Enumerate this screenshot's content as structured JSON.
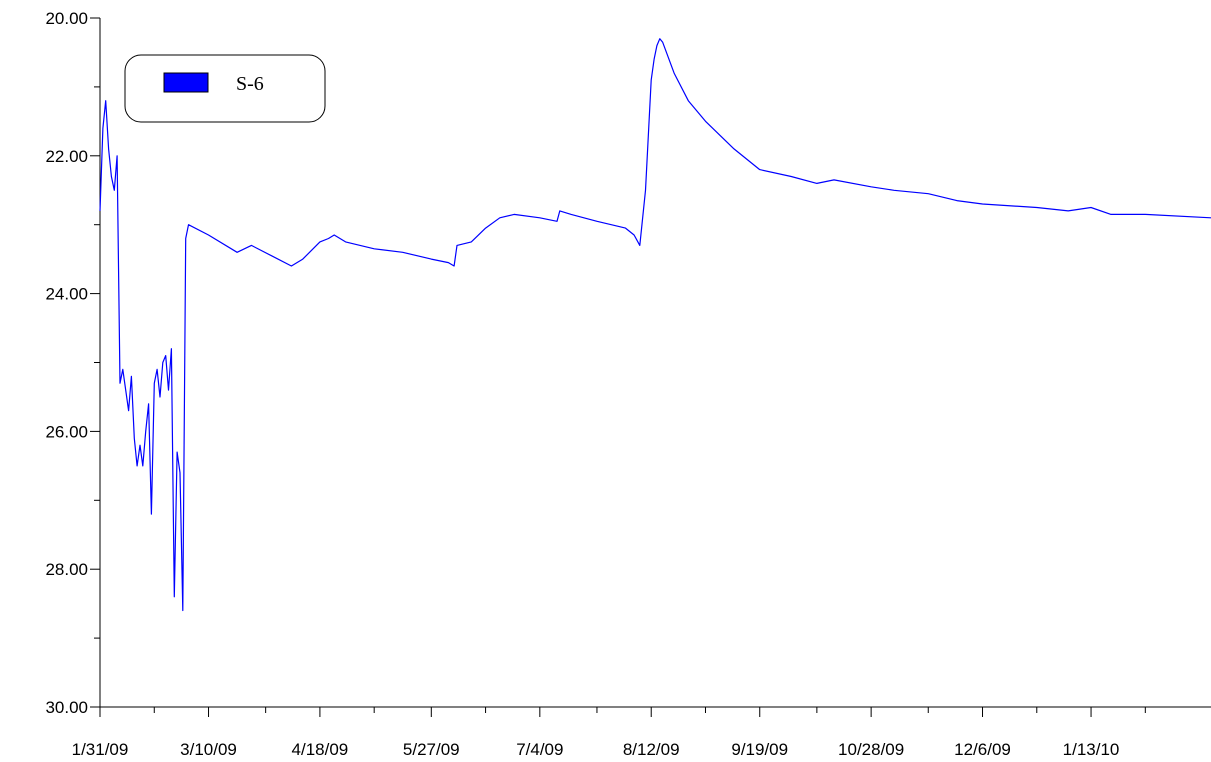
{
  "chart_data": {
    "type": "line",
    "title": "",
    "xlabel": "",
    "ylabel": "",
    "y_inverted": true,
    "ylim": [
      20.0,
      30.0
    ],
    "xlim": [
      "2009-01-31",
      "2010-02-24"
    ],
    "y_ticks": [
      {
        "value": 20.0,
        "label": "20.00"
      },
      {
        "value": 22.0,
        "label": "22.00"
      },
      {
        "value": 24.0,
        "label": "24.00"
      },
      {
        "value": 26.0,
        "label": "26.00"
      },
      {
        "value": 28.0,
        "label": "28.00"
      },
      {
        "value": 30.0,
        "label": "30.00"
      }
    ],
    "y_minor_ticks": [
      21.0,
      23.0,
      25.0,
      27.0,
      29.0
    ],
    "x_ticks": [
      {
        "value": "2009-01-31",
        "label": "1/31/09"
      },
      {
        "value": "2009-03-10",
        "label": "3/10/09"
      },
      {
        "value": "2009-04-18",
        "label": "4/18/09"
      },
      {
        "value": "2009-05-27",
        "label": "5/27/09"
      },
      {
        "value": "2009-07-04",
        "label": "7/4/09"
      },
      {
        "value": "2009-08-12",
        "label": "8/12/09"
      },
      {
        "value": "2009-09-19",
        "label": "9/19/09"
      },
      {
        "value": "2009-10-28",
        "label": "10/28/09"
      },
      {
        "value": "2009-12-06",
        "label": "12/6/09"
      },
      {
        "value": "2010-01-13",
        "label": "1/13/10"
      }
    ],
    "x_minor_ticks": [
      "2009-02-19",
      "2009-03-30",
      "2009-05-07",
      "2009-06-15",
      "2009-07-24",
      "2009-08-31",
      "2009-10-09",
      "2009-11-17",
      "2009-12-25",
      "2010-02-01"
    ],
    "grid": false,
    "legend": {
      "position": "top-left",
      "box": "rounded"
    },
    "series": [
      {
        "name": "S-6",
        "color": "#0000ff",
        "points": [
          [
            "2009-01-31",
            22.8
          ],
          [
            "2009-02-01",
            21.6
          ],
          [
            "2009-02-02",
            21.2
          ],
          [
            "2009-02-03",
            21.9
          ],
          [
            "2009-02-04",
            22.3
          ],
          [
            "2009-02-05",
            22.5
          ],
          [
            "2009-02-06",
            22.0
          ],
          [
            "2009-02-07",
            25.3
          ],
          [
            "2009-02-08",
            25.1
          ],
          [
            "2009-02-09",
            25.4
          ],
          [
            "2009-02-10",
            25.7
          ],
          [
            "2009-02-11",
            25.2
          ],
          [
            "2009-02-12",
            26.1
          ],
          [
            "2009-02-13",
            26.5
          ],
          [
            "2009-02-14",
            26.2
          ],
          [
            "2009-02-15",
            26.5
          ],
          [
            "2009-02-16",
            26.0
          ],
          [
            "2009-02-17",
            25.6
          ],
          [
            "2009-02-18",
            27.2
          ],
          [
            "2009-02-19",
            25.3
          ],
          [
            "2009-02-20",
            25.1
          ],
          [
            "2009-02-21",
            25.5
          ],
          [
            "2009-02-22",
            25.0
          ],
          [
            "2009-02-23",
            24.9
          ],
          [
            "2009-02-24",
            25.4
          ],
          [
            "2009-02-25",
            24.8
          ],
          [
            "2009-02-26",
            28.4
          ],
          [
            "2009-02-27",
            26.3
          ],
          [
            "2009-02-28",
            26.6
          ],
          [
            "2009-03-01",
            28.6
          ],
          [
            "2009-03-02",
            23.2
          ],
          [
            "2009-03-03",
            23.0
          ],
          [
            "2009-03-10",
            23.15
          ],
          [
            "2009-03-20",
            23.4
          ],
          [
            "2009-03-25",
            23.3
          ],
          [
            "2009-04-01",
            23.45
          ],
          [
            "2009-04-08",
            23.6
          ],
          [
            "2009-04-12",
            23.5
          ],
          [
            "2009-04-18",
            23.25
          ],
          [
            "2009-04-21",
            23.2
          ],
          [
            "2009-04-23",
            23.15
          ],
          [
            "2009-04-27",
            23.25
          ],
          [
            "2009-05-07",
            23.35
          ],
          [
            "2009-05-17",
            23.4
          ],
          [
            "2009-05-27",
            23.5
          ],
          [
            "2009-06-02",
            23.55
          ],
          [
            "2009-06-04",
            23.6
          ],
          [
            "2009-06-05",
            23.3
          ],
          [
            "2009-06-10",
            23.25
          ],
          [
            "2009-06-15",
            23.05
          ],
          [
            "2009-06-20",
            22.9
          ],
          [
            "2009-06-25",
            22.85
          ],
          [
            "2009-07-04",
            22.9
          ],
          [
            "2009-07-10",
            22.95
          ],
          [
            "2009-07-11",
            22.8
          ],
          [
            "2009-07-15",
            22.85
          ],
          [
            "2009-07-24",
            22.95
          ],
          [
            "2009-08-03",
            23.05
          ],
          [
            "2009-08-06",
            23.15
          ],
          [
            "2009-08-08",
            23.3
          ],
          [
            "2009-08-10",
            22.5
          ],
          [
            "2009-08-12",
            20.9
          ],
          [
            "2009-08-13",
            20.6
          ],
          [
            "2009-08-14",
            20.4
          ],
          [
            "2009-08-15",
            20.3
          ],
          [
            "2009-08-16",
            20.35
          ],
          [
            "2009-08-20",
            20.8
          ],
          [
            "2009-08-25",
            21.2
          ],
          [
            "2009-08-31",
            21.5
          ],
          [
            "2009-09-10",
            21.9
          ],
          [
            "2009-09-19",
            22.2
          ],
          [
            "2009-09-30",
            22.3
          ],
          [
            "2009-10-09",
            22.4
          ],
          [
            "2009-10-15",
            22.35
          ],
          [
            "2009-10-28",
            22.45
          ],
          [
            "2009-11-05",
            22.5
          ],
          [
            "2009-11-17",
            22.55
          ],
          [
            "2009-11-27",
            22.65
          ],
          [
            "2009-12-06",
            22.7
          ],
          [
            "2009-12-25",
            22.75
          ],
          [
            "2010-01-05",
            22.8
          ],
          [
            "2010-01-13",
            22.75
          ],
          [
            "2010-01-20",
            22.85
          ],
          [
            "2010-02-01",
            22.85
          ],
          [
            "2010-02-24",
            22.9
          ]
        ]
      }
    ]
  }
}
